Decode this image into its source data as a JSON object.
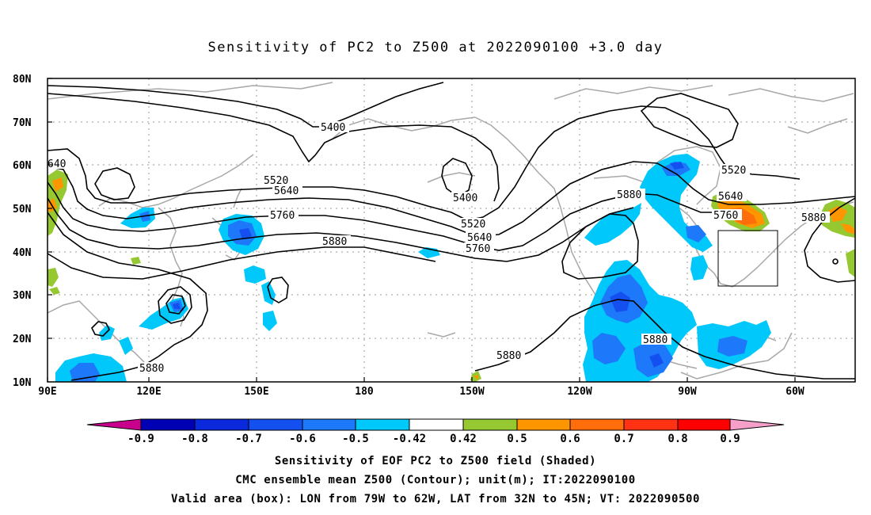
{
  "title": "Sensitivity of PC2 to Z500 at 2022090100 +3.0 day",
  "lat_labels": [
    "80N",
    "70N",
    "60N",
    "50N",
    "40N",
    "30N",
    "20N",
    "10N"
  ],
  "lon_labels": [
    "90E",
    "120E",
    "150E",
    "180",
    "150W",
    "120W",
    "90W",
    "60W"
  ],
  "contour_labels": {
    "c640": "640",
    "c5400a": "5400",
    "c5520a": "5520",
    "c5640a": "5640",
    "c5760a": "5760",
    "c5880a": "5880",
    "c5400b": "5400",
    "c5520b": "5520",
    "c5640b": "5640",
    "c5760b": "5760",
    "c5880b": "5880",
    "c5520c": "5520",
    "c5640c": "5640",
    "c5760c": "5760",
    "c5880c": "5880",
    "c5880d": "5880",
    "c5880e": "5880",
    "c5880f": "5880"
  },
  "colorbar": {
    "colors": [
      "#c8008c",
      "#0000b4",
      "#0a28dc",
      "#1450f0",
      "#1e78fa",
      "#00c8fa",
      "#ffffff",
      "#96c832",
      "#ff9600",
      "#ff6e0a",
      "#ff3214",
      "#ff0000",
      "#f5a0c8"
    ],
    "labels": [
      "-0.9",
      "-0.8",
      "-0.7",
      "-0.6",
      "-0.5",
      "-0.42",
      "0.42",
      "0.5",
      "0.6",
      "0.7",
      "0.8",
      "0.9"
    ]
  },
  "footer": {
    "line1": "Sensitivity of EOF PC2 to Z500 field (Shaded)",
    "line2": "CMC ensemble mean Z500 (Contour); unit(m); IT:2022090100",
    "line3": "Valid area (box): LON from 79W to 62W, LAT from 32N to 45N; VT: 2022090500"
  }
}
